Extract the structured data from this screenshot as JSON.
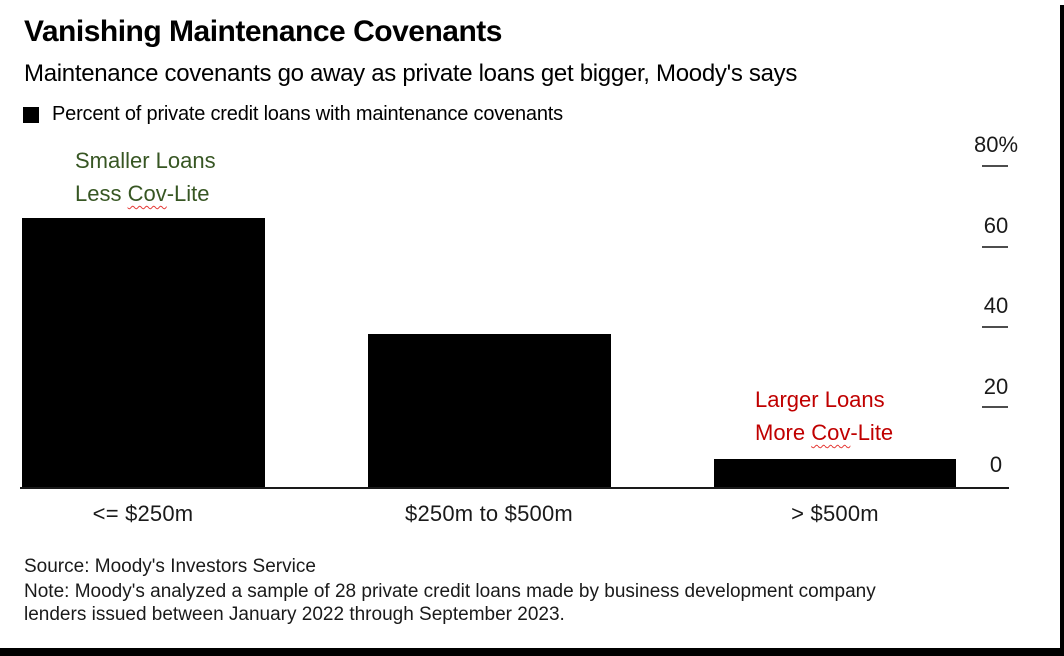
{
  "page": {
    "background": "#ffffff",
    "border_color": "#000000"
  },
  "header": {
    "title": "Vanishing Maintenance Covenants",
    "subtitle": "Maintenance covenants go away as private loans get bigger, Moody's says"
  },
  "legend": {
    "marker_color": "#000000",
    "label": "Percent of private credit loans with maintenance covenants"
  },
  "annotations": {
    "smaller": {
      "line1": "Smaller Loans",
      "line2_prefix": "Less ",
      "line2_word": "Cov",
      "line2_suffix": "-Lite",
      "color": "#375623"
    },
    "larger": {
      "line1": "Larger Loans",
      "line2_prefix": "More ",
      "line2_word": "Cov",
      "line2_suffix": "-Lite",
      "color": "#C00000"
    }
  },
  "chart_data": {
    "type": "bar",
    "title": "Vanishing Maintenance Covenants",
    "subtitle": "Maintenance covenants go away as private loans get bigger, Moody's says",
    "series_label": "Percent of private credit loans with maintenance covenants",
    "categories": [
      "<= $250m",
      "$250m to $500m",
      "> $500m"
    ],
    "values": [
      67,
      38,
      7
    ],
    "unit": "%",
    "xlabel": "",
    "ylabel": "",
    "ylim": [
      0,
      80
    ],
    "yticks": [
      0,
      20,
      40,
      60,
      80
    ],
    "ytick_labels_top_to_bottom": [
      "80%",
      "60",
      "40",
      "20",
      "0"
    ],
    "y_axis_position": "right",
    "grid": false,
    "bar_color": "#000000",
    "annotations": [
      {
        "text": "Smaller Loans / Less Cov-Lite",
        "color": "#375623",
        "position": "above first bar"
      },
      {
        "text": "Larger Loans / More Cov-Lite",
        "color": "#C00000",
        "position": "above third bar"
      }
    ]
  },
  "footer": {
    "source": "Source: Moody's Investors Service",
    "note_lines": [
      "Note: Moody's analyzed a sample of 28 private credit loans made by business development company",
      "lenders issued between January 2022 through September 2023."
    ]
  }
}
